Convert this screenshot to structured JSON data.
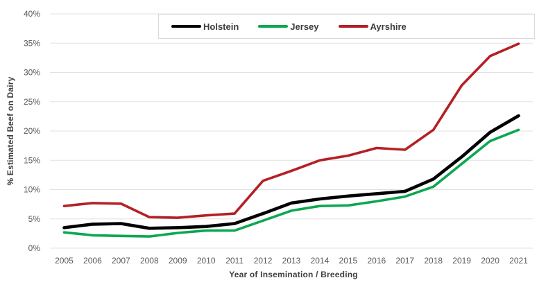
{
  "chart_data": {
    "type": "line",
    "title": "",
    "xlabel": "Year of Insemination / Breeding",
    "ylabel": "% Estimated Beef on Dairy",
    "categories": [
      "2005",
      "2006",
      "2007",
      "2008",
      "2009",
      "2010",
      "2011",
      "2012",
      "2013",
      "2014",
      "2015",
      "2016",
      "2017",
      "2018",
      "2019",
      "2020",
      "2021"
    ],
    "series": [
      {
        "name": "Holstein",
        "color": "#000000",
        "values": [
          3.5,
          4.1,
          4.2,
          3.4,
          3.5,
          3.7,
          4.2,
          5.9,
          7.7,
          8.4,
          8.9,
          9.3,
          9.7,
          11.8,
          15.6,
          19.8,
          22.6
        ]
      },
      {
        "name": "Jersey",
        "color": "#0ca750",
        "values": [
          2.7,
          2.2,
          2.1,
          2.0,
          2.6,
          3.0,
          3.0,
          4.7,
          6.4,
          7.2,
          7.3,
          8.0,
          8.8,
          10.5,
          14.4,
          18.3,
          20.2
        ]
      },
      {
        "name": "Ayrshire",
        "color": "#b42025",
        "values": [
          7.2,
          7.7,
          7.6,
          5.3,
          5.2,
          5.6,
          5.9,
          11.5,
          13.2,
          15.0,
          15.8,
          17.1,
          16.8,
          20.2,
          27.8,
          32.8,
          34.9
        ]
      }
    ],
    "ylim": [
      0,
      40
    ],
    "ytick_step": 5,
    "ytick_suffix": "%",
    "grid": true,
    "legend_position": "top"
  },
  "style": {
    "grid_color": "#e2e2e2",
    "tick_label_color": "#595959",
    "axis_title_color": "#3f3f3f",
    "legend_border_color": "#d9d9d9",
    "background": "#ffffff"
  }
}
